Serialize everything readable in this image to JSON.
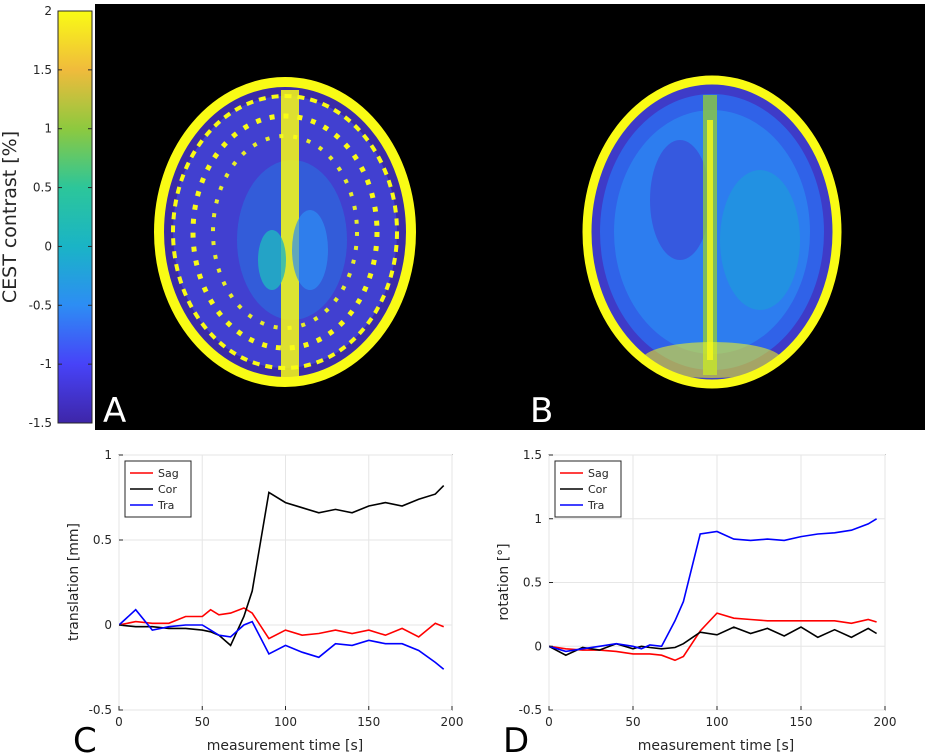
{
  "colorbar": {
    "label": "CEST contrast [%]",
    "ticks": [
      "2",
      "1.5",
      "1",
      "0.5",
      "0",
      "-0.5",
      "-1",
      "-1.5"
    ],
    "range": [
      -1.5,
      2
    ],
    "colormap": [
      "#3e26a8",
      "#4743f8",
      "#2d8df4",
      "#1ab4c6",
      "#2cc69a",
      "#8dc93f",
      "#f0bb3c",
      "#f9fb15"
    ]
  },
  "panels": {
    "a_label": "A",
    "b_label": "B",
    "c_label": "C",
    "d_label": "D"
  },
  "chart_data": [
    {
      "type": "line",
      "xlabel": "measurement time [s]",
      "ylabel": "translation [mm]",
      "xlim": [
        0,
        200
      ],
      "ylim": [
        -0.5,
        1
      ],
      "xticks": [
        "0",
        "50",
        "100",
        "150",
        "200"
      ],
      "yticks": [
        "-0.5",
        "0",
        "0.5",
        "1"
      ],
      "grid": true,
      "legend_position": "top-left",
      "x": [
        0,
        10,
        20,
        30,
        40,
        50,
        55,
        60,
        67,
        75,
        80,
        90,
        100,
        110,
        120,
        130,
        140,
        150,
        160,
        170,
        180,
        190,
        195
      ],
      "series": [
        {
          "name": "Sag",
          "color": "#ff0000",
          "values": [
            0,
            0.02,
            0.01,
            0.01,
            0.05,
            0.05,
            0.09,
            0.06,
            0.07,
            0.1,
            0.07,
            -0.08,
            -0.03,
            -0.06,
            -0.05,
            -0.03,
            -0.05,
            -0.03,
            -0.06,
            -0.02,
            -0.07,
            0.01,
            -0.01
          ]
        },
        {
          "name": "Cor",
          "color": "#000000",
          "values": [
            0,
            -0.01,
            -0.01,
            -0.02,
            -0.02,
            -0.03,
            -0.04,
            -0.06,
            -0.12,
            0.05,
            0.2,
            0.78,
            0.72,
            0.69,
            0.66,
            0.68,
            0.66,
            0.7,
            0.72,
            0.7,
            0.74,
            0.77,
            0.82
          ]
        },
        {
          "name": "Tra",
          "color": "#0000ff",
          "values": [
            0,
            0.09,
            -0.03,
            -0.01,
            0.0,
            0.0,
            -0.03,
            -0.06,
            -0.07,
            0.0,
            0.02,
            -0.17,
            -0.12,
            -0.16,
            -0.19,
            -0.11,
            -0.12,
            -0.09,
            -0.11,
            -0.11,
            -0.15,
            -0.22,
            -0.26
          ]
        }
      ]
    },
    {
      "type": "line",
      "xlabel": "measurement time [s]",
      "ylabel": "rotation [°]",
      "xlim": [
        0,
        200
      ],
      "ylim": [
        -0.5,
        1.5
      ],
      "xticks": [
        "0",
        "50",
        "100",
        "150",
        "200"
      ],
      "yticks": [
        "-0.5",
        "0",
        "0.5",
        "1",
        "1.5"
      ],
      "grid": true,
      "legend_position": "top-left",
      "x": [
        0,
        10,
        20,
        30,
        40,
        50,
        55,
        60,
        67,
        75,
        80,
        90,
        100,
        110,
        120,
        130,
        140,
        150,
        160,
        170,
        180,
        190,
        195
      ],
      "series": [
        {
          "name": "Sag",
          "color": "#ff0000",
          "values": [
            0,
            -0.02,
            -0.03,
            -0.03,
            -0.04,
            -0.06,
            -0.06,
            -0.06,
            -0.07,
            -0.11,
            -0.08,
            0.12,
            0.26,
            0.22,
            0.21,
            0.2,
            0.2,
            0.2,
            0.2,
            0.2,
            0.18,
            0.21,
            0.19
          ]
        },
        {
          "name": "Cor",
          "color": "#000000",
          "values": [
            0,
            -0.07,
            -0.01,
            -0.03,
            0.02,
            -0.02,
            0.0,
            -0.01,
            -0.02,
            -0.01,
            0.02,
            0.11,
            0.09,
            0.15,
            0.1,
            0.14,
            0.08,
            0.15,
            0.07,
            0.13,
            0.07,
            0.14,
            0.1
          ]
        },
        {
          "name": "Tra",
          "color": "#0000ff",
          "values": [
            0,
            -0.04,
            -0.02,
            0.0,
            0.02,
            0.0,
            -0.02,
            0.01,
            0.0,
            0.2,
            0.35,
            0.88,
            0.9,
            0.84,
            0.83,
            0.84,
            0.83,
            0.86,
            0.88,
            0.89,
            0.91,
            0.96,
            1.0
          ]
        }
      ]
    }
  ]
}
